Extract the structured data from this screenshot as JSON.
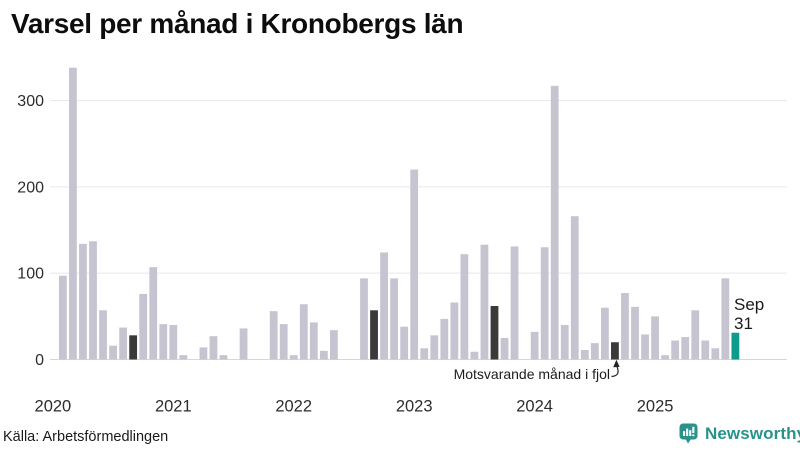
{
  "title": "Varsel per månad i Kronobergs län",
  "source": "Källa: Arbetsförmedlingen",
  "annotation": {
    "text": "Motsvarande månad i fjol"
  },
  "highlight": {
    "month_label": "Sep",
    "value_label": "31"
  },
  "logo_text": "Newsworthy",
  "colors": {
    "bar": "#c7c4d2",
    "dark_bar": "#3a3a3a",
    "highlight_bar": "#0e9b8c",
    "logo_teal": "#27938a",
    "gridline": "#e7e7ed",
    "baseline": "#d6d6de",
    "axis_text": "#2d2d2d"
  },
  "chart_data": {
    "type": "bar",
    "title": "Varsel per månad i Kronobergs län",
    "xlabel": "",
    "ylabel": "",
    "ylim": [
      0,
      350
    ],
    "yticks": [
      0,
      100,
      200,
      300
    ],
    "grid": "horizontal",
    "x_year_labels": [
      "2020",
      "2021",
      "2022",
      "2023",
      "2024",
      "2025"
    ],
    "start": "2020-02",
    "end": "2025-09",
    "dark_months": [
      "2020-09",
      "2022-09",
      "2023-09",
      "2024-09"
    ],
    "highlight_month": "2025-09",
    "highlight_value": 31,
    "series": [
      {
        "year": 2020,
        "first_month": 2,
        "values": [
          97,
          338,
          134,
          137,
          57,
          16,
          37,
          28,
          76,
          107,
          41
        ]
      },
      {
        "year": 2021,
        "first_month": 1,
        "values": [
          40,
          5,
          0,
          14,
          27,
          5,
          0,
          36,
          0,
          0,
          56,
          41
        ]
      },
      {
        "year": 2022,
        "first_month": 1,
        "values": [
          5,
          64,
          43,
          10,
          34,
          0,
          0,
          94,
          57,
          124,
          94,
          38
        ]
      },
      {
        "year": 2023,
        "first_month": 1,
        "values": [
          220,
          13,
          28,
          47,
          66,
          122,
          9,
          133,
          62,
          25,
          131,
          0
        ]
      },
      {
        "year": 2024,
        "first_month": 1,
        "values": [
          32,
          130,
          317,
          40,
          166,
          11,
          19,
          60,
          20,
          77,
          61,
          29
        ]
      },
      {
        "year": 2025,
        "first_month": 1,
        "values": [
          50,
          5,
          22,
          26,
          57,
          22,
          13,
          94,
          31
        ]
      }
    ]
  }
}
